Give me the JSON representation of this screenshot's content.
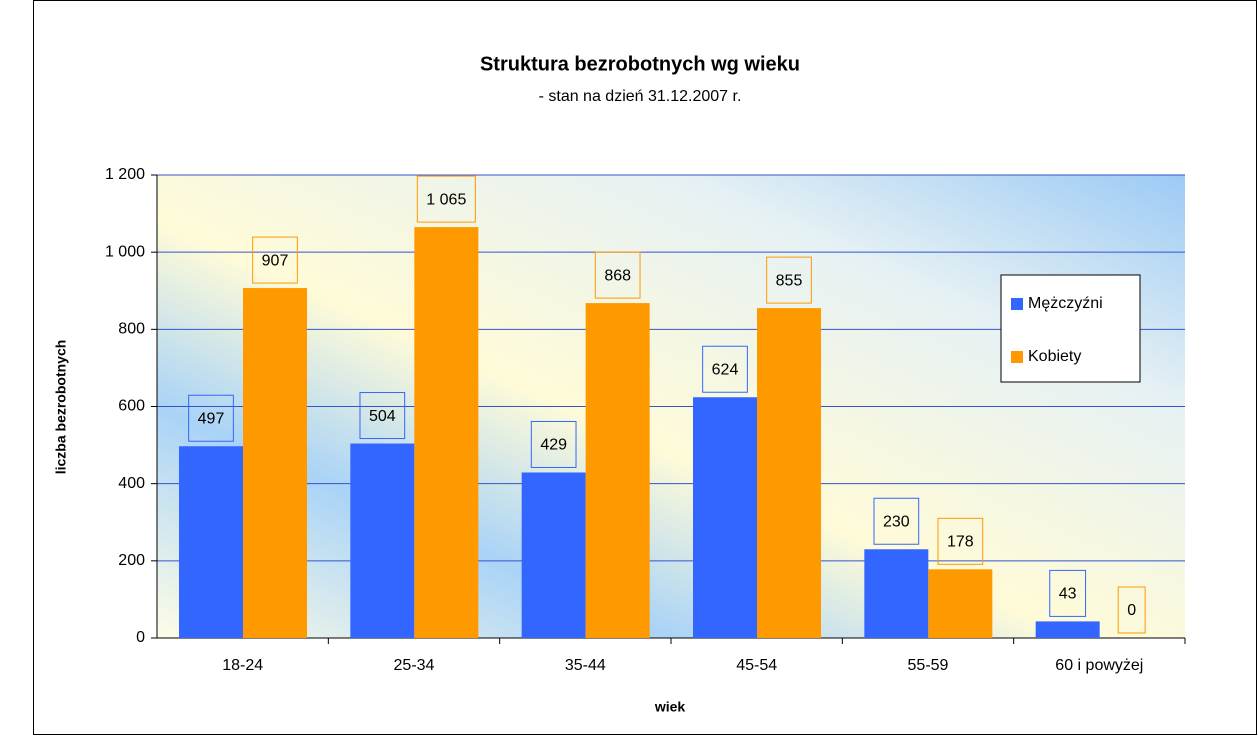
{
  "chart_data": {
    "type": "bar",
    "title": "Struktura bezrobotnych wg wieku",
    "subtitle": "- stan na dzień 31.12.2007 r.",
    "xlabel": "wiek",
    "ylabel": "liczba bezrobotnych",
    "categories": [
      "18-24",
      "25-34",
      "35-44",
      "45-54",
      "55-59",
      "60 i powyżej"
    ],
    "series": [
      {
        "name": "Mężczyźni",
        "color": "#3366ff",
        "values": [
          497,
          504,
          429,
          624,
          230,
          43
        ],
        "value_labels": [
          "497",
          "504",
          "429",
          "624",
          "230",
          "43"
        ]
      },
      {
        "name": "Kobiety",
        "color": "#ff9900",
        "values": [
          907,
          1065,
          868,
          855,
          178,
          0
        ],
        "value_labels": [
          "907",
          "1 065",
          "868",
          "855",
          "178",
          "0"
        ]
      }
    ],
    "ylim": [
      0,
      1200
    ],
    "yticks": [
      0,
      200,
      400,
      600,
      800,
      {
        "value": 1000,
        "label": "1 000"
      },
      {
        "value": 1200,
        "label": "1 200"
      }
    ],
    "grid": true,
    "legend": "right"
  }
}
